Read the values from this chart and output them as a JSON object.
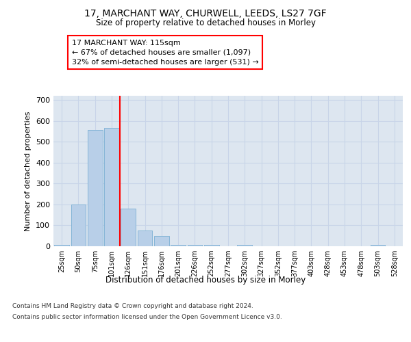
{
  "title_line1": "17, MARCHANT WAY, CHURWELL, LEEDS, LS27 7GF",
  "title_line2": "Size of property relative to detached houses in Morley",
  "xlabel": "Distribution of detached houses by size in Morley",
  "ylabel": "Number of detached properties",
  "categories": [
    "25sqm",
    "50sqm",
    "75sqm",
    "101sqm",
    "126sqm",
    "151sqm",
    "176sqm",
    "201sqm",
    "226sqm",
    "252sqm",
    "277sqm",
    "302sqm",
    "327sqm",
    "352sqm",
    "377sqm",
    "403sqm",
    "428sqm",
    "453sqm",
    "478sqm",
    "503sqm",
    "528sqm"
  ],
  "values": [
    5,
    200,
    555,
    565,
    180,
    75,
    50,
    5,
    5,
    5,
    0,
    5,
    0,
    0,
    0,
    0,
    0,
    0,
    0,
    5,
    0
  ],
  "bar_color": "#b8cfe8",
  "bar_edge_color": "#7bafd4",
  "grid_color": "#c8d4e8",
  "background_color": "#dde6f0",
  "annotation_box_text": "17 MARCHANT WAY: 115sqm\n← 67% of detached houses are smaller (1,097)\n32% of semi-detached houses are larger (531) →",
  "annotation_box_color": "white",
  "annotation_box_edge_color": "red",
  "vline_x": 3.5,
  "vline_color": "red",
  "ylim": [
    0,
    720
  ],
  "yticks": [
    0,
    100,
    200,
    300,
    400,
    500,
    600,
    700
  ],
  "footnote_line1": "Contains HM Land Registry data © Crown copyright and database right 2024.",
  "footnote_line2": "Contains public sector information licensed under the Open Government Licence v3.0."
}
